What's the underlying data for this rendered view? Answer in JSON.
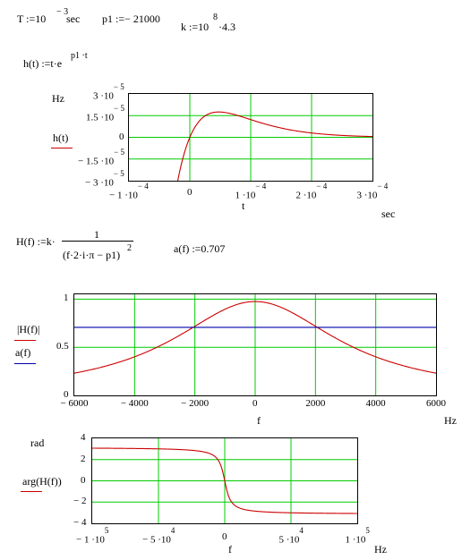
{
  "definitions": {
    "T_lhs": "T :=10",
    "T_exp": "− 3",
    "T_unit": "sec",
    "p1": "p1 :=− 21000",
    "k_lhs": "k :=10",
    "k_exp": "8",
    "k_rest": "·4.3",
    "h_def_lhs": "h(t) :=t·e",
    "h_def_exp": "p1 ·t",
    "H_def_lhs": "H(f) :=k·",
    "H_num": "1",
    "H_den": "(f·2·i·π − p1)",
    "H_den_exp": "2",
    "a_def": "a(f) :=0.707"
  },
  "plot1": {
    "unit_left": "Hz",
    "trace_label": "h(t)",
    "trace_label_color": "#cc0000",
    "y_ticks": [
      {
        "m": "3 ·10",
        "e": "− 5"
      },
      {
        "m": "1.5 ·10",
        "e": "− 5"
      },
      {
        "m": "0",
        "e": ""
      },
      {
        "m": "− 1.5 ·10",
        "e": "− 5"
      },
      {
        "m": "− 3 ·10",
        "e": "− 5"
      }
    ],
    "x_ticks": [
      {
        "m": "− 1 ·10",
        "e": "− 4"
      },
      {
        "m": "0",
        "e": ""
      },
      {
        "m": "1 ·10",
        "e": "− 4"
      },
      {
        "m": "2 ·10",
        "e": "− 4"
      },
      {
        "m": "3 ·10",
        "e": "− 4"
      }
    ],
    "xlabel": "t",
    "x_unit": "sec"
  },
  "plot2": {
    "trace1_label": "|H(f)|",
    "trace1_color": "#cc0000",
    "trace2_label": "a(f)",
    "trace2_color": "#0000aa",
    "y_ticks": [
      "1",
      "0.5",
      "0"
    ],
    "x_ticks": [
      "− 6000",
      "− 4000",
      "− 2000",
      "0",
      "2000",
      "4000",
      "6000"
    ],
    "xlabel": "f",
    "x_unit": "Hz"
  },
  "plot3": {
    "unit_left": "rad",
    "trace_label": "arg(H(f))",
    "trace_label_color": "#cc0000",
    "y_ticks": [
      "4",
      "2",
      "0",
      "− 2",
      "− 4"
    ],
    "x_ticks": [
      {
        "m": "− 1 ·10",
        "e": "5"
      },
      {
        "m": "− 5 ·10",
        "e": "4"
      },
      {
        "m": "0",
        "e": ""
      },
      {
        "m": "5 ·10",
        "e": "4"
      },
      {
        "m": "1 ·10",
        "e": "5"
      }
    ],
    "xlabel": "f",
    "x_unit": "Hz"
  },
  "chart_data": [
    {
      "type": "line",
      "series": [
        {
          "name": "h(t)",
          "function": "t·exp(−21000·t)"
        }
      ],
      "xlim": [
        -0.0001,
        0.0003
      ],
      "ylim": [
        -3e-05,
        3e-05
      ],
      "grid": true,
      "colors": {
        "line": "#cc0000",
        "grid": "#00cc00"
      }
    },
    {
      "type": "line",
      "series": [
        {
          "name": "|H(f)|",
          "function": "|4.3e8 / (2πif + 21000)^2|"
        },
        {
          "name": "a(f)",
          "function": "0.707"
        }
      ],
      "xlim": [
        -6000,
        6000
      ],
      "ylim": [
        0,
        1.05
      ],
      "grid": true,
      "colors": {
        "line1": "#cc0000",
        "line2": "#0000aa",
        "grid": "#00cc00"
      }
    },
    {
      "type": "line",
      "series": [
        {
          "name": "arg(H(f))",
          "function": "arg(4.3e8 / (2πif + 21000)^2)"
        }
      ],
      "xlim": [
        -100000,
        100000
      ],
      "ylim": [
        -4,
        4
      ],
      "grid": true,
      "colors": {
        "line": "#cc0000",
        "grid": "#00cc00"
      }
    }
  ]
}
